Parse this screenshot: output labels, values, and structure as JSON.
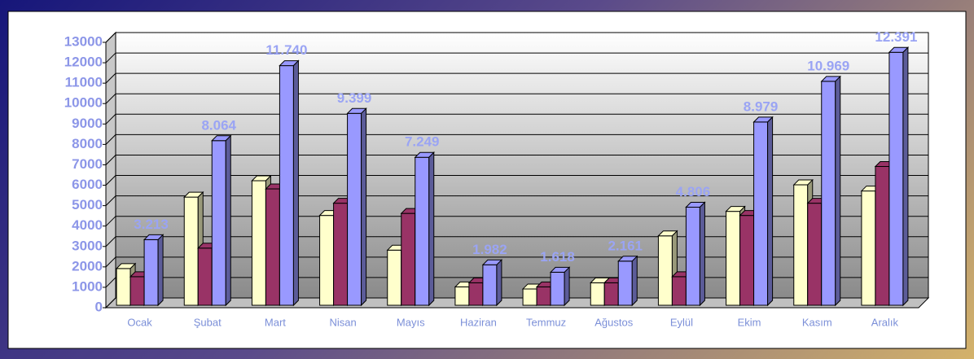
{
  "chart_data": {
    "type": "bar3d",
    "categories": [
      "Ocak",
      "Şubat",
      "Mart",
      "Nisan",
      "Mayıs",
      "Haziran",
      "Temmuz",
      "Ağustos",
      "Eylül",
      "Ekim",
      "Kasım",
      "Aralık"
    ],
    "series": [
      {
        "color": "#ffffcc",
        "values": [
          1800,
          5300,
          6100,
          4400,
          2700,
          900,
          800,
          1100,
          3400,
          4600,
          5900,
          5600
        ]
      },
      {
        "color": "#993366",
        "values": [
          1400,
          2800,
          5700,
          5000,
          4500,
          1100,
          900,
          1100,
          1400,
          4400,
          5000,
          6800
        ]
      },
      {
        "color": "#9999ff",
        "values": [
          3213,
          8064,
          11740,
          9399,
          7249,
          1982,
          1618,
          2161,
          4806,
          8979,
          10969,
          12391
        ],
        "value_labels": [
          "3.213",
          "8.064",
          "11.740",
          "9.399",
          "7.249",
          "1.982",
          "1.618",
          "2.161",
          "4.806",
          "8.979",
          "10.969",
          "12.391"
        ]
      }
    ],
    "ylim": [
      0,
      13000
    ],
    "yticks": [
      0,
      1000,
      2000,
      3000,
      4000,
      5000,
      6000,
      7000,
      8000,
      9000,
      10000,
      11000,
      12000,
      13000
    ],
    "grid": true
  }
}
